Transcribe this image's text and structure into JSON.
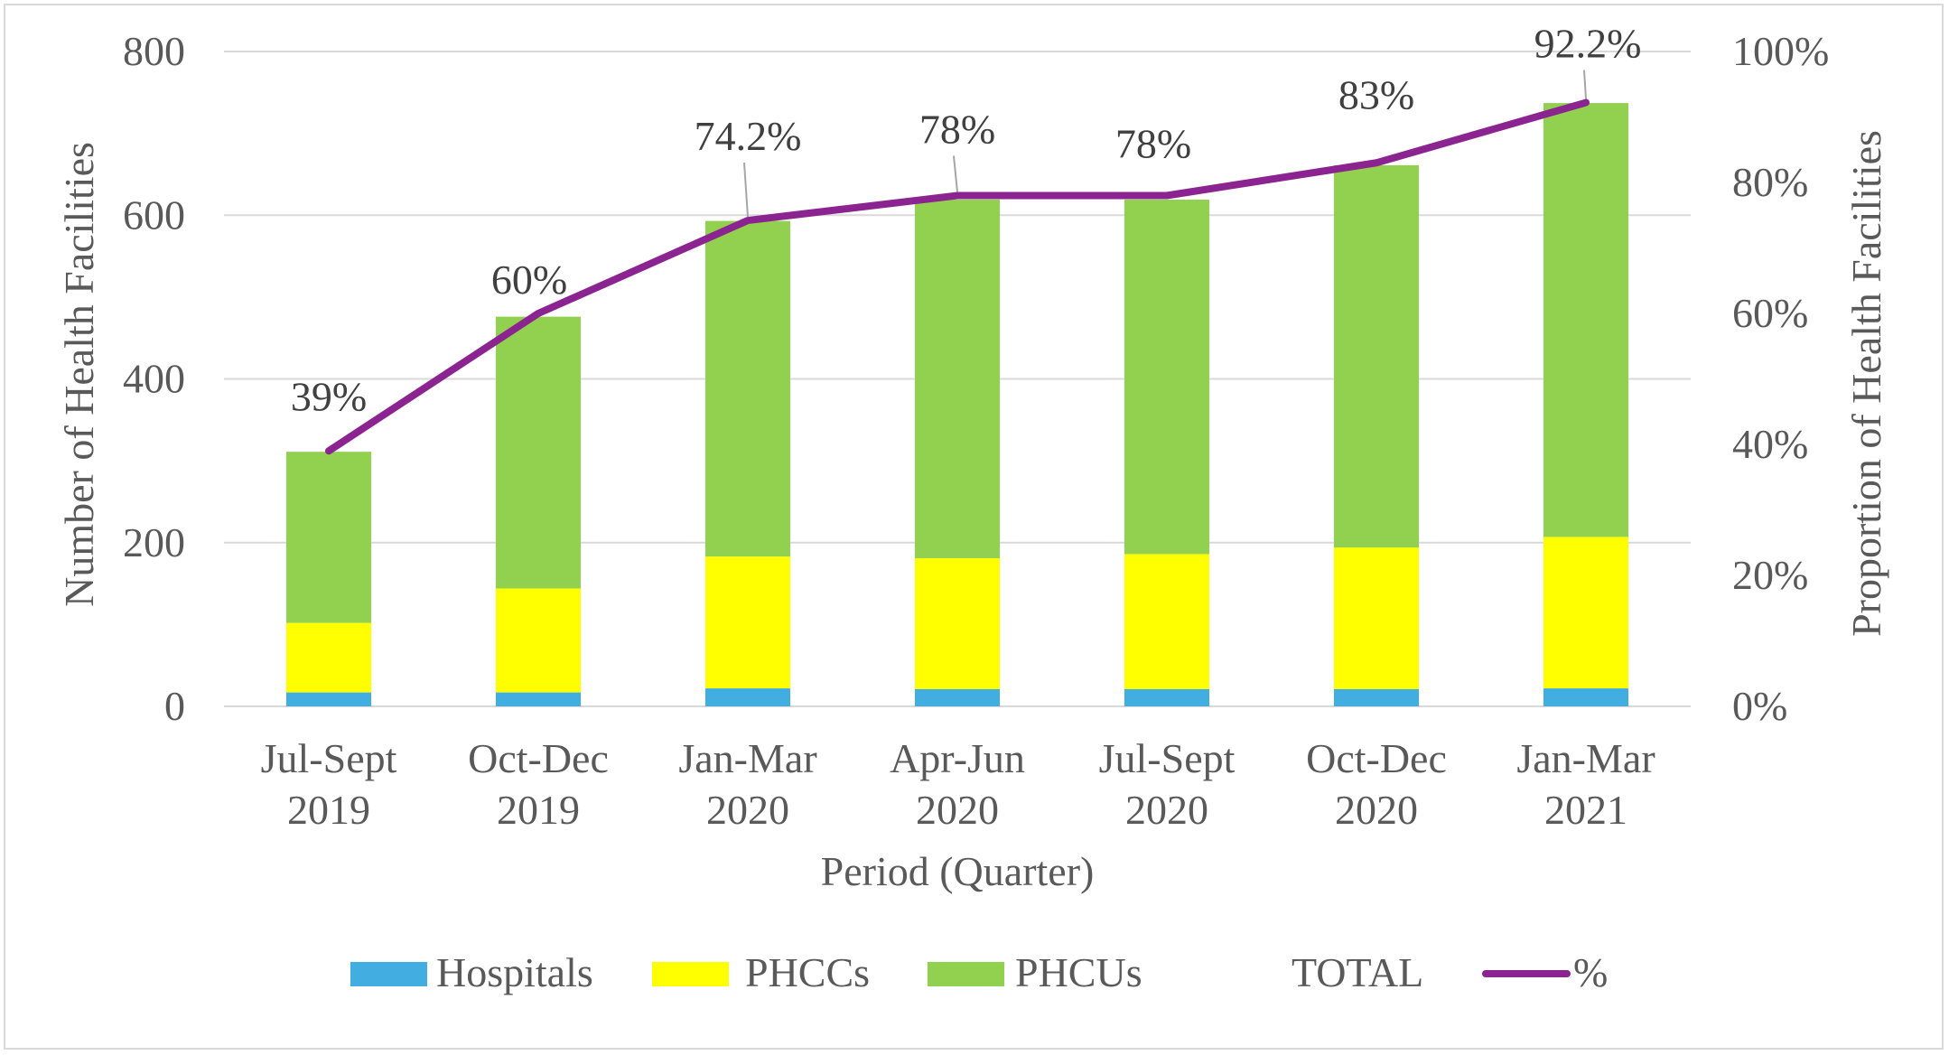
{
  "chart_data": {
    "type": "bar",
    "stacked": true,
    "categories": [
      [
        "Jul-Sept",
        "2019"
      ],
      [
        "Oct-Dec",
        "2019"
      ],
      [
        "Jan-Mar",
        "2020"
      ],
      [
        "Apr-Jun",
        "2020"
      ],
      [
        "Jul-Sept",
        "2020"
      ],
      [
        "Oct-Dec",
        "2020"
      ],
      [
        "Jan-Mar",
        "2021"
      ]
    ],
    "series": [
      {
        "name": "Hospitals",
        "color": "#41ade1",
        "values": [
          17,
          17,
          22,
          21,
          21,
          21,
          22
        ]
      },
      {
        "name": "PHCCs",
        "color": "#ffff00",
        "values": [
          85,
          127,
          161,
          160,
          165,
          173,
          185
        ]
      },
      {
        "name": "PHCUs",
        "color": "#92d050",
        "values": [
          209,
          332,
          410,
          438,
          433,
          467,
          530
        ]
      }
    ],
    "line_series": {
      "name": "%",
      "color": "#8b2490",
      "values": [
        39,
        60,
        74.2,
        78,
        78,
        83,
        92.2
      ],
      "labels": [
        "39%",
        "60%",
        "74.2%",
        "78%",
        "78%",
        "83%",
        "92.2%"
      ]
    },
    "xlabel": "Period (Quarter)",
    "ylabel": "Number of Health Facilities",
    "y2label": "Proportion of Health Facilities",
    "ylim": [
      0,
      800
    ],
    "yticks": [
      "0",
      "200",
      "400",
      "600",
      "800"
    ],
    "y2lim": [
      0,
      100
    ],
    "y2ticks": [
      "0%",
      "20%",
      "40%",
      "60%",
      "80%",
      "100%"
    ],
    "grid": true,
    "legend": {
      "placement": "bottom",
      "items": [
        "Hospitals",
        "PHCCs",
        "PHCUs",
        "TOTAL",
        "%"
      ]
    }
  }
}
